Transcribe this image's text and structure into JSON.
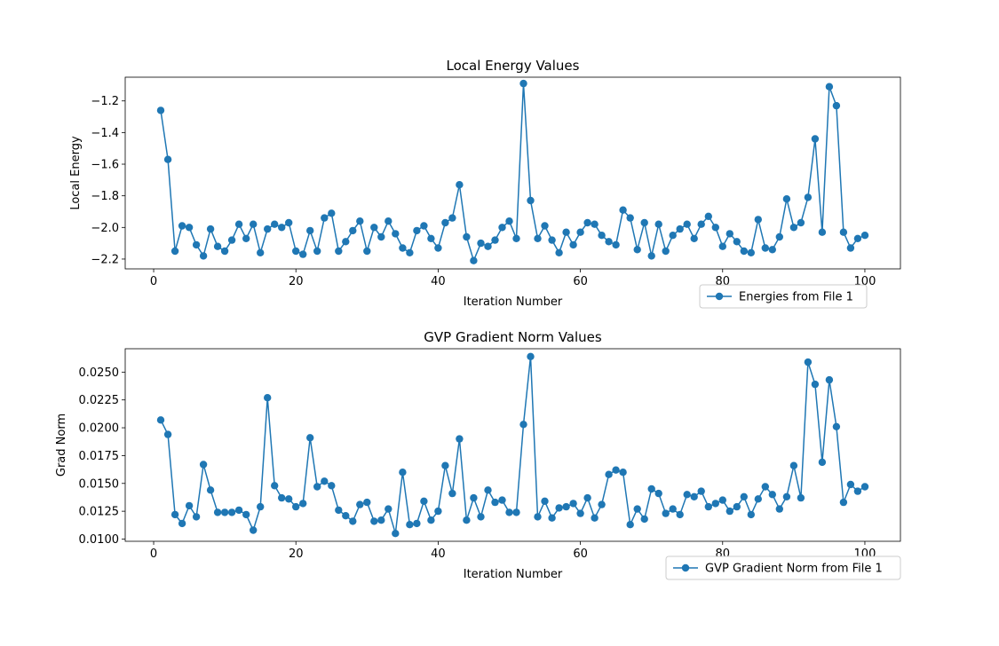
{
  "chart_data": [
    {
      "type": "line",
      "title": "Local Energy Values",
      "xlabel": "Iteration Number",
      "ylabel": "Local Energy",
      "xlim": [
        -4,
        105
      ],
      "ylim": [
        -2.262,
        -1.05
      ],
      "xticks": [
        0,
        20,
        40,
        60,
        80,
        100
      ],
      "xtick_labels": [
        "0",
        "20",
        "40",
        "60",
        "80",
        "100"
      ],
      "yticks": [
        -2.2,
        -2.0,
        -1.8,
        -1.6,
        -1.4,
        -1.2
      ],
      "ytick_labels": [
        "−2.2",
        "−2.0",
        "−1.8",
        "−1.6",
        "−1.4",
        "−1.2"
      ],
      "legend_position": "bottom-right, below plot",
      "color": "#1f77b4",
      "series": [
        {
          "name": "Energies from File 1",
          "x": [
            1,
            2,
            3,
            4,
            5,
            6,
            7,
            8,
            9,
            10,
            11,
            12,
            13,
            14,
            15,
            16,
            17,
            18,
            19,
            20,
            21,
            22,
            23,
            24,
            25,
            26,
            27,
            28,
            29,
            30,
            31,
            32,
            33,
            34,
            35,
            36,
            37,
            38,
            39,
            40,
            41,
            42,
            43,
            44,
            45,
            46,
            47,
            48,
            49,
            50,
            51,
            52,
            53,
            54,
            55,
            56,
            57,
            58,
            59,
            60,
            61,
            62,
            63,
            64,
            65,
            66,
            67,
            68,
            69,
            70,
            71,
            72,
            73,
            74,
            75,
            76,
            77,
            78,
            79,
            80,
            81,
            82,
            83,
            84,
            85,
            86,
            87,
            88,
            89,
            90,
            91,
            92,
            93,
            94,
            95,
            96,
            97,
            98,
            99,
            100
          ],
          "values": [
            -1.26,
            -1.57,
            -2.15,
            -1.99,
            -2.0,
            -2.11,
            -2.18,
            -2.01,
            -2.12,
            -2.15,
            -2.08,
            -1.98,
            -2.07,
            -1.98,
            -2.16,
            -2.01,
            -1.98,
            -2.0,
            -1.97,
            -2.15,
            -2.17,
            -2.02,
            -2.15,
            -1.94,
            -1.91,
            -2.15,
            -2.09,
            -2.02,
            -1.96,
            -2.15,
            -2.0,
            -2.06,
            -1.96,
            -2.04,
            -2.13,
            -2.16,
            -2.02,
            -1.99,
            -2.07,
            -2.13,
            -1.97,
            -1.94,
            -1.73,
            -2.06,
            -2.21,
            -2.1,
            -2.12,
            -2.08,
            -2.0,
            -1.96,
            -2.07,
            -1.09,
            -1.83,
            -2.07,
            -1.99,
            -2.08,
            -2.16,
            -2.03,
            -2.11,
            -2.03,
            -1.97,
            -1.98,
            -2.05,
            -2.09,
            -2.11,
            -1.89,
            -1.94,
            -2.14,
            -1.97,
            -2.18,
            -1.98,
            -2.15,
            -2.05,
            -2.01,
            -1.98,
            -2.07,
            -1.98,
            -1.93,
            -2.0,
            -2.12,
            -2.04,
            -2.09,
            -2.15,
            -2.16,
            -1.95,
            -2.13,
            -2.14,
            -2.06,
            -1.82,
            -2.0,
            -1.97,
            -1.81,
            -1.44,
            -2.03,
            -1.11,
            -1.23,
            -2.03,
            -2.13,
            -2.07,
            -2.05
          ]
        }
      ]
    },
    {
      "type": "line",
      "title": "GVP Gradient Norm Values",
      "xlabel": "Iteration Number",
      "ylabel": "Grad Norm",
      "xlim": [
        -4,
        105
      ],
      "ylim": [
        0.0098,
        0.0271
      ],
      "xticks": [
        0,
        20,
        40,
        60,
        80,
        100
      ],
      "xtick_labels": [
        "0",
        "20",
        "40",
        "60",
        "80",
        "100"
      ],
      "yticks": [
        0.01,
        0.0125,
        0.015,
        0.0175,
        0.02,
        0.0225,
        0.025
      ],
      "ytick_labels": [
        "0.0100",
        "0.0125",
        "0.0150",
        "0.0175",
        "0.0200",
        "0.0225",
        "0.0250"
      ],
      "legend_position": "bottom-right, below plot",
      "color": "#1f77b4",
      "series": [
        {
          "name": "GVP Gradient Norm from File 1",
          "x": [
            1,
            2,
            3,
            4,
            5,
            6,
            7,
            8,
            9,
            10,
            11,
            12,
            13,
            14,
            15,
            16,
            17,
            18,
            19,
            20,
            21,
            22,
            23,
            24,
            25,
            26,
            27,
            28,
            29,
            30,
            31,
            32,
            33,
            34,
            35,
            36,
            37,
            38,
            39,
            40,
            41,
            42,
            43,
            44,
            45,
            46,
            47,
            48,
            49,
            50,
            51,
            52,
            53,
            54,
            55,
            56,
            57,
            58,
            59,
            60,
            61,
            62,
            63,
            64,
            65,
            66,
            67,
            68,
            69,
            70,
            71,
            72,
            73,
            74,
            75,
            76,
            77,
            78,
            79,
            80,
            81,
            82,
            83,
            84,
            85,
            86,
            87,
            88,
            89,
            90,
            91,
            92,
            93,
            94,
            95,
            96,
            97,
            98,
            99,
            100
          ],
          "values": [
            0.0207,
            0.0194,
            0.0122,
            0.0114,
            0.013,
            0.012,
            0.0167,
            0.0144,
            0.0124,
            0.0124,
            0.0124,
            0.0126,
            0.0122,
            0.0108,
            0.0129,
            0.0227,
            0.0148,
            0.0137,
            0.0136,
            0.0129,
            0.0132,
            0.0191,
            0.0147,
            0.0152,
            0.0148,
            0.0126,
            0.0121,
            0.0116,
            0.0131,
            0.0133,
            0.0116,
            0.0117,
            0.0127,
            0.0105,
            0.016,
            0.0113,
            0.0114,
            0.0134,
            0.0117,
            0.0125,
            0.0166,
            0.0141,
            0.019,
            0.0117,
            0.0137,
            0.012,
            0.0144,
            0.0133,
            0.0135,
            0.0124,
            0.0124,
            0.0203,
            0.0264,
            0.012,
            0.0134,
            0.0119,
            0.0128,
            0.0129,
            0.0132,
            0.0123,
            0.0137,
            0.0119,
            0.0131,
            0.0158,
            0.0162,
            0.016,
            0.0113,
            0.0127,
            0.0118,
            0.0145,
            0.0141,
            0.0123,
            0.0127,
            0.0122,
            0.014,
            0.0138,
            0.0143,
            0.0129,
            0.0132,
            0.0135,
            0.0125,
            0.0129,
            0.0138,
            0.0122,
            0.0136,
            0.0147,
            0.014,
            0.0127,
            0.0138,
            0.0166,
            0.0137,
            0.0259,
            0.0239,
            0.0169,
            0.0243,
            0.0201,
            0.0133,
            0.0149,
            0.0143,
            0.0147
          ]
        }
      ]
    }
  ]
}
